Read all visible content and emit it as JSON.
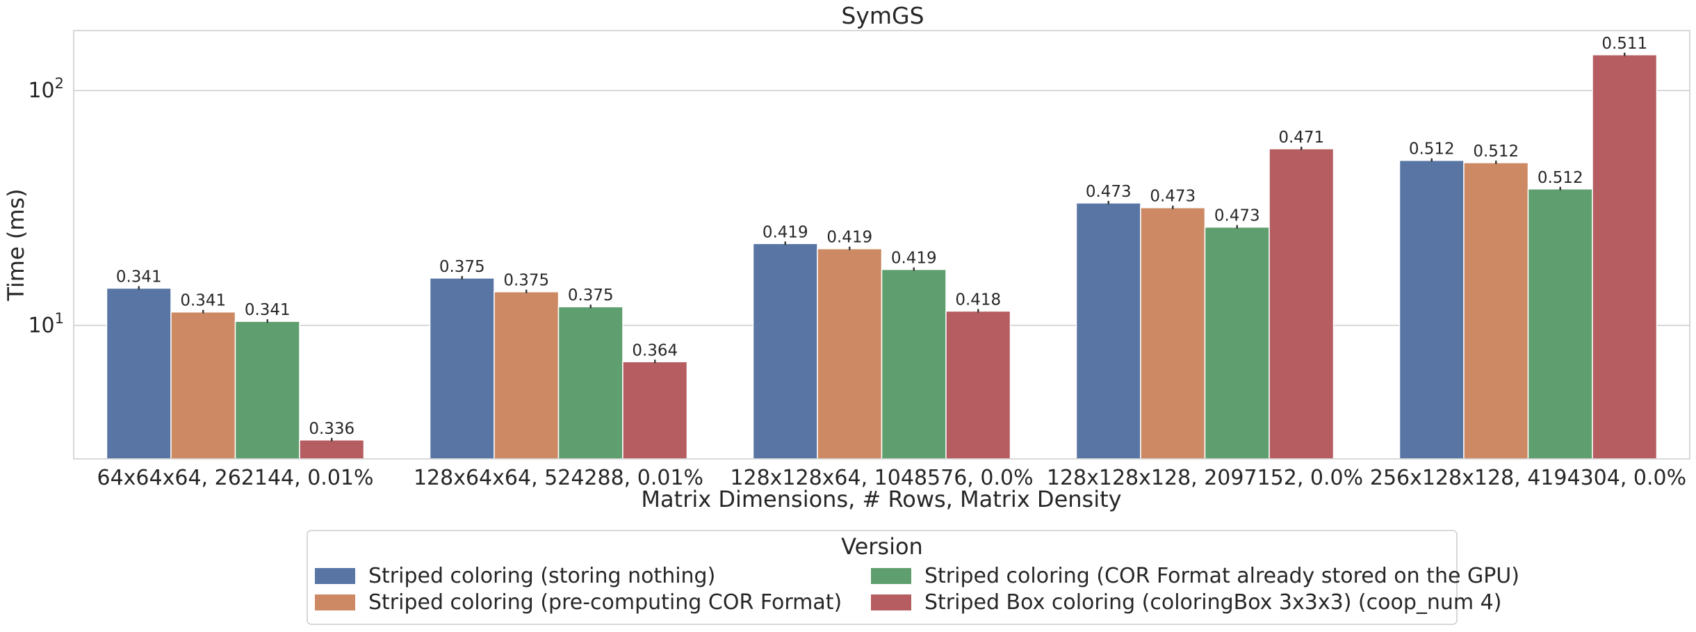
{
  "chart_data": {
    "type": "bar",
    "title": "SymGS",
    "xlabel": "Matrix Dimensions, # Rows, Matrix Density",
    "ylabel": "Time (ms)",
    "yscale": "log",
    "ylim": [
      2.7,
      180
    ],
    "yticks": [
      {
        "value": 10,
        "base": "10",
        "exp": "1"
      },
      {
        "value": 100,
        "base": "10",
        "exp": "2"
      }
    ],
    "grid": true,
    "categories": [
      "64x64x64, 262144, 0.01%",
      "128x64x64, 524288, 0.01%",
      "128x128x64, 1048576, 0.0%",
      "128x128x128, 2097152, 0.0%",
      "256x128x128, 4194304, 0.0%"
    ],
    "series": [
      {
        "name": "Striped coloring (storing nothing)",
        "color": "#5875a4",
        "values": [
          14.4,
          15.9,
          22.3,
          33.2,
          50.4
        ],
        "labels": [
          "0.341",
          "0.375",
          "0.419",
          "0.473",
          "0.512"
        ]
      },
      {
        "name": "Striped coloring (pre-computing COR Format)",
        "color": "#cc8963",
        "values": [
          11.4,
          13.9,
          21.2,
          31.7,
          49.3
        ],
        "labels": [
          "0.341",
          "0.375",
          "0.419",
          "0.473",
          "0.512"
        ]
      },
      {
        "name": "Striped coloring (COR Format already stored on the GPU)",
        "color": "#5f9e6e",
        "values": [
          10.4,
          12.0,
          17.3,
          26.2,
          38.1
        ],
        "labels": [
          "0.341",
          "0.375",
          "0.419",
          "0.473",
          "0.512"
        ]
      },
      {
        "name": "Striped Box coloring (coloringBox 3x3x3) (coop_num 4)",
        "color": "#b55d60",
        "values": [
          3.25,
          7.0,
          11.5,
          56.5,
          142.0
        ],
        "labels": [
          "0.336",
          "0.364",
          "0.418",
          "0.471",
          "0.511"
        ]
      }
    ],
    "legend": {
      "title": "Version",
      "placement": "bottom-center",
      "columns": 2
    }
  }
}
